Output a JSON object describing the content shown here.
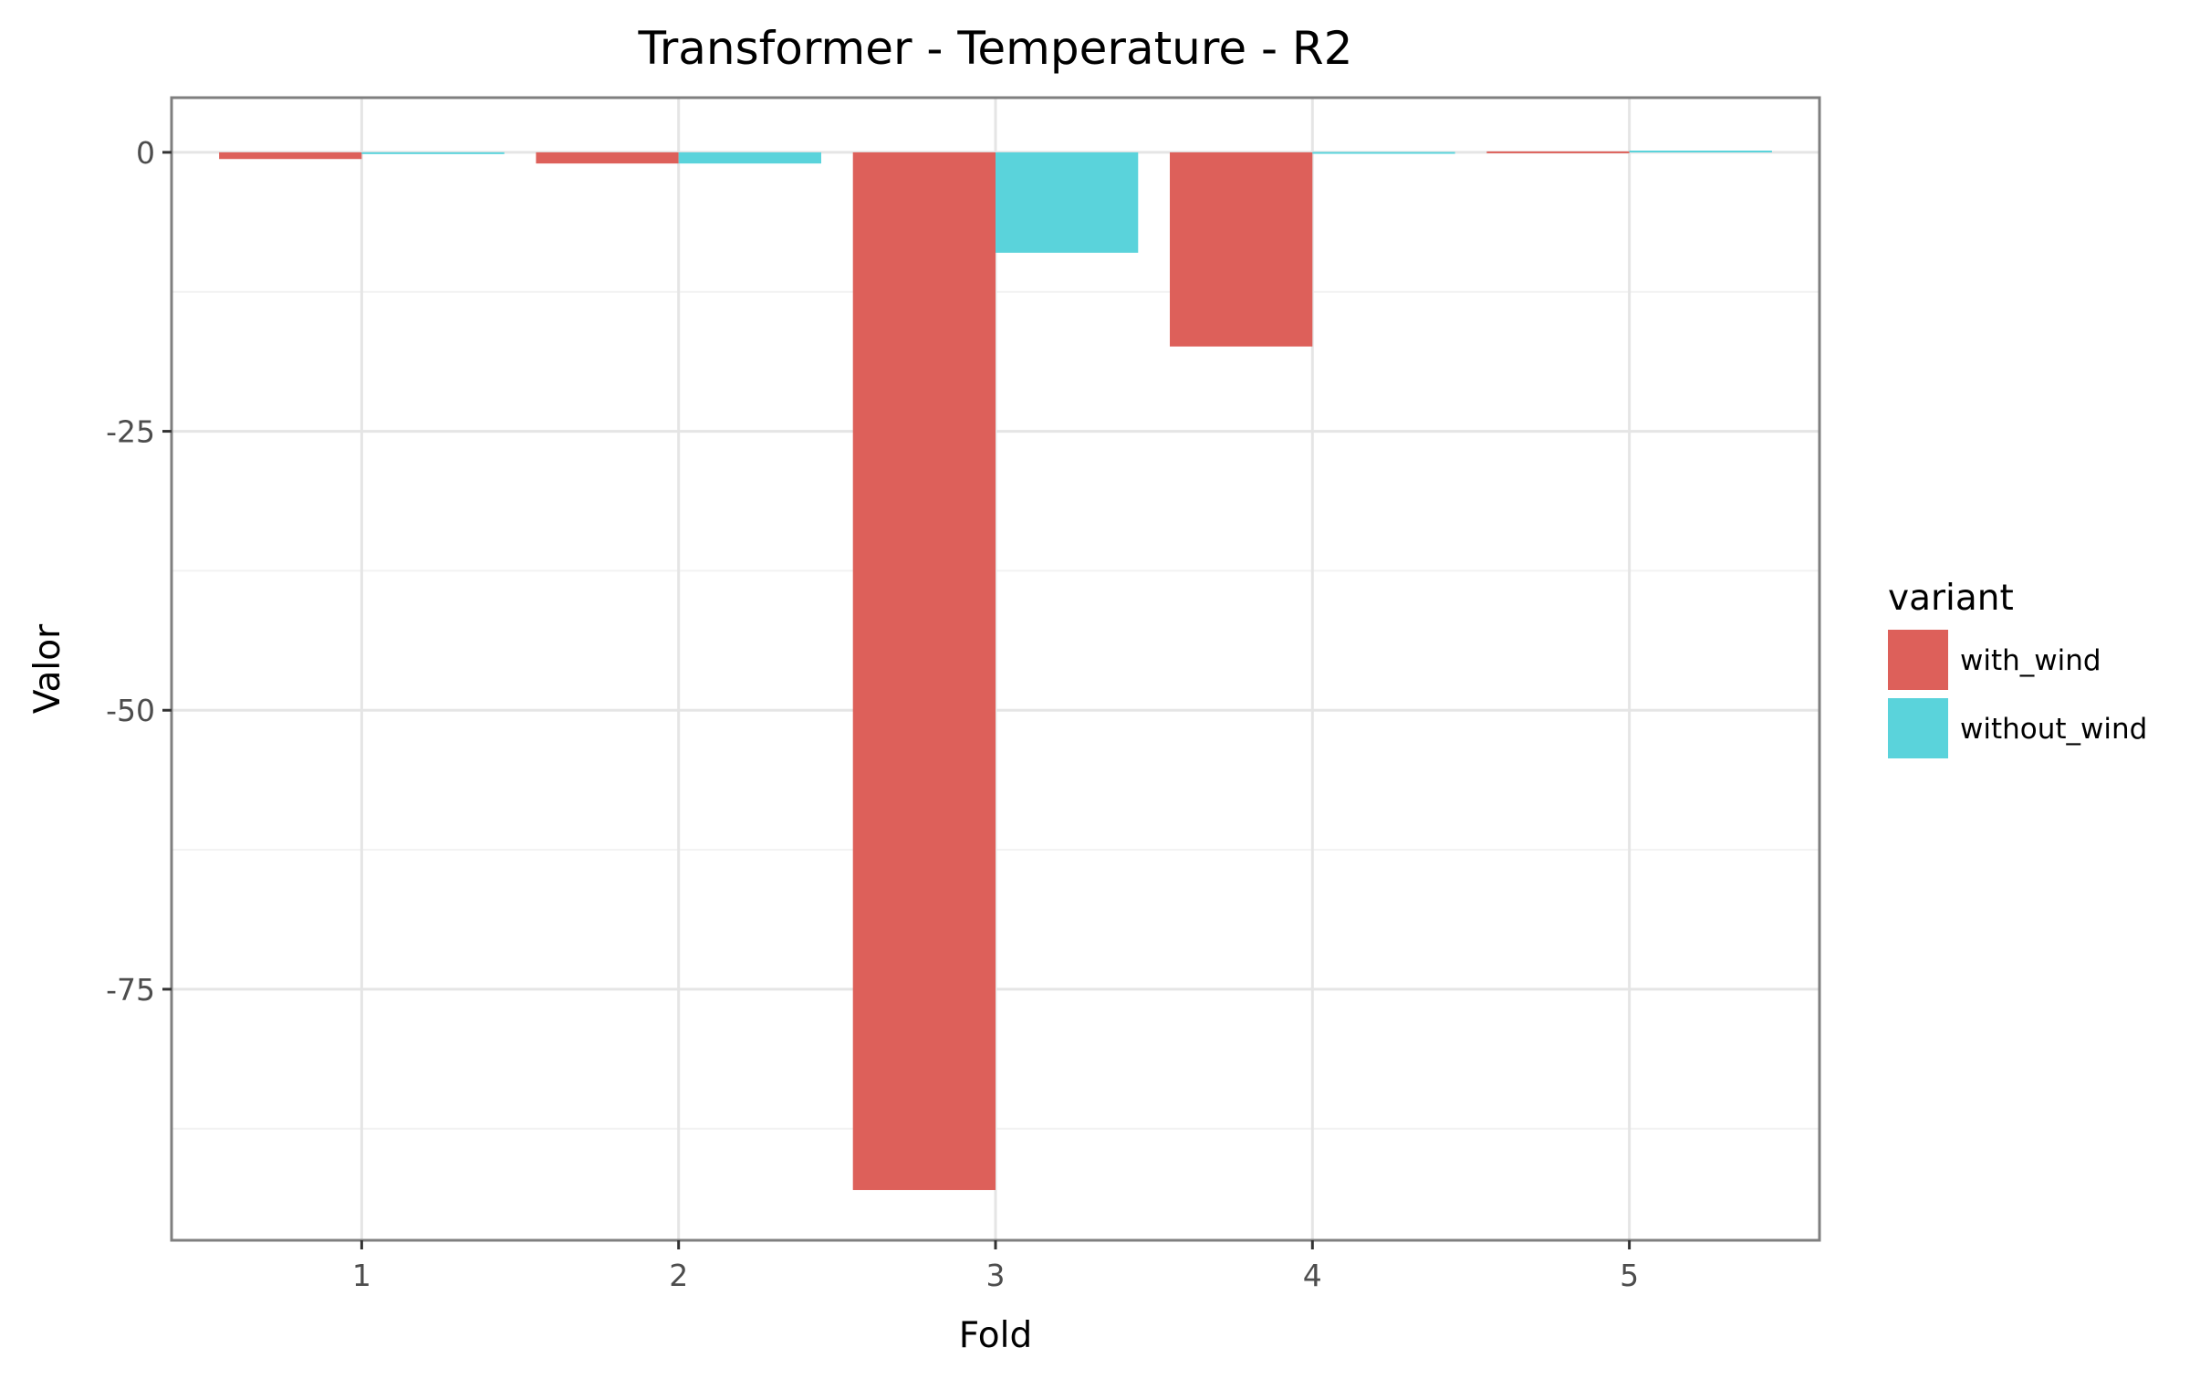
{
  "chart_data": {
    "type": "bar",
    "title": "Transformer - Temperature - R2",
    "xlabel": "Fold",
    "ylabel": "Valor",
    "categories": [
      "1",
      "2",
      "3",
      "4",
      "5"
    ],
    "series": [
      {
        "name": "with_wind",
        "color": "#dd605a",
        "values": [
          -0.6,
          -1.0,
          -93.0,
          -17.4,
          0.0
        ]
      },
      {
        "name": "without_wind",
        "color": "#5ad3db",
        "values": [
          -0.15,
          -1.0,
          -9.0,
          -0.1,
          0.15
        ]
      }
    ],
    "ylim": [
      -97.5,
      4.9
    ],
    "yticks": [
      0,
      -25,
      -50,
      -75
    ],
    "ytick_labels": [
      "0",
      "-25",
      "-50",
      "-75"
    ],
    "grid": true,
    "legend": {
      "title": "variant",
      "position": "right"
    }
  }
}
